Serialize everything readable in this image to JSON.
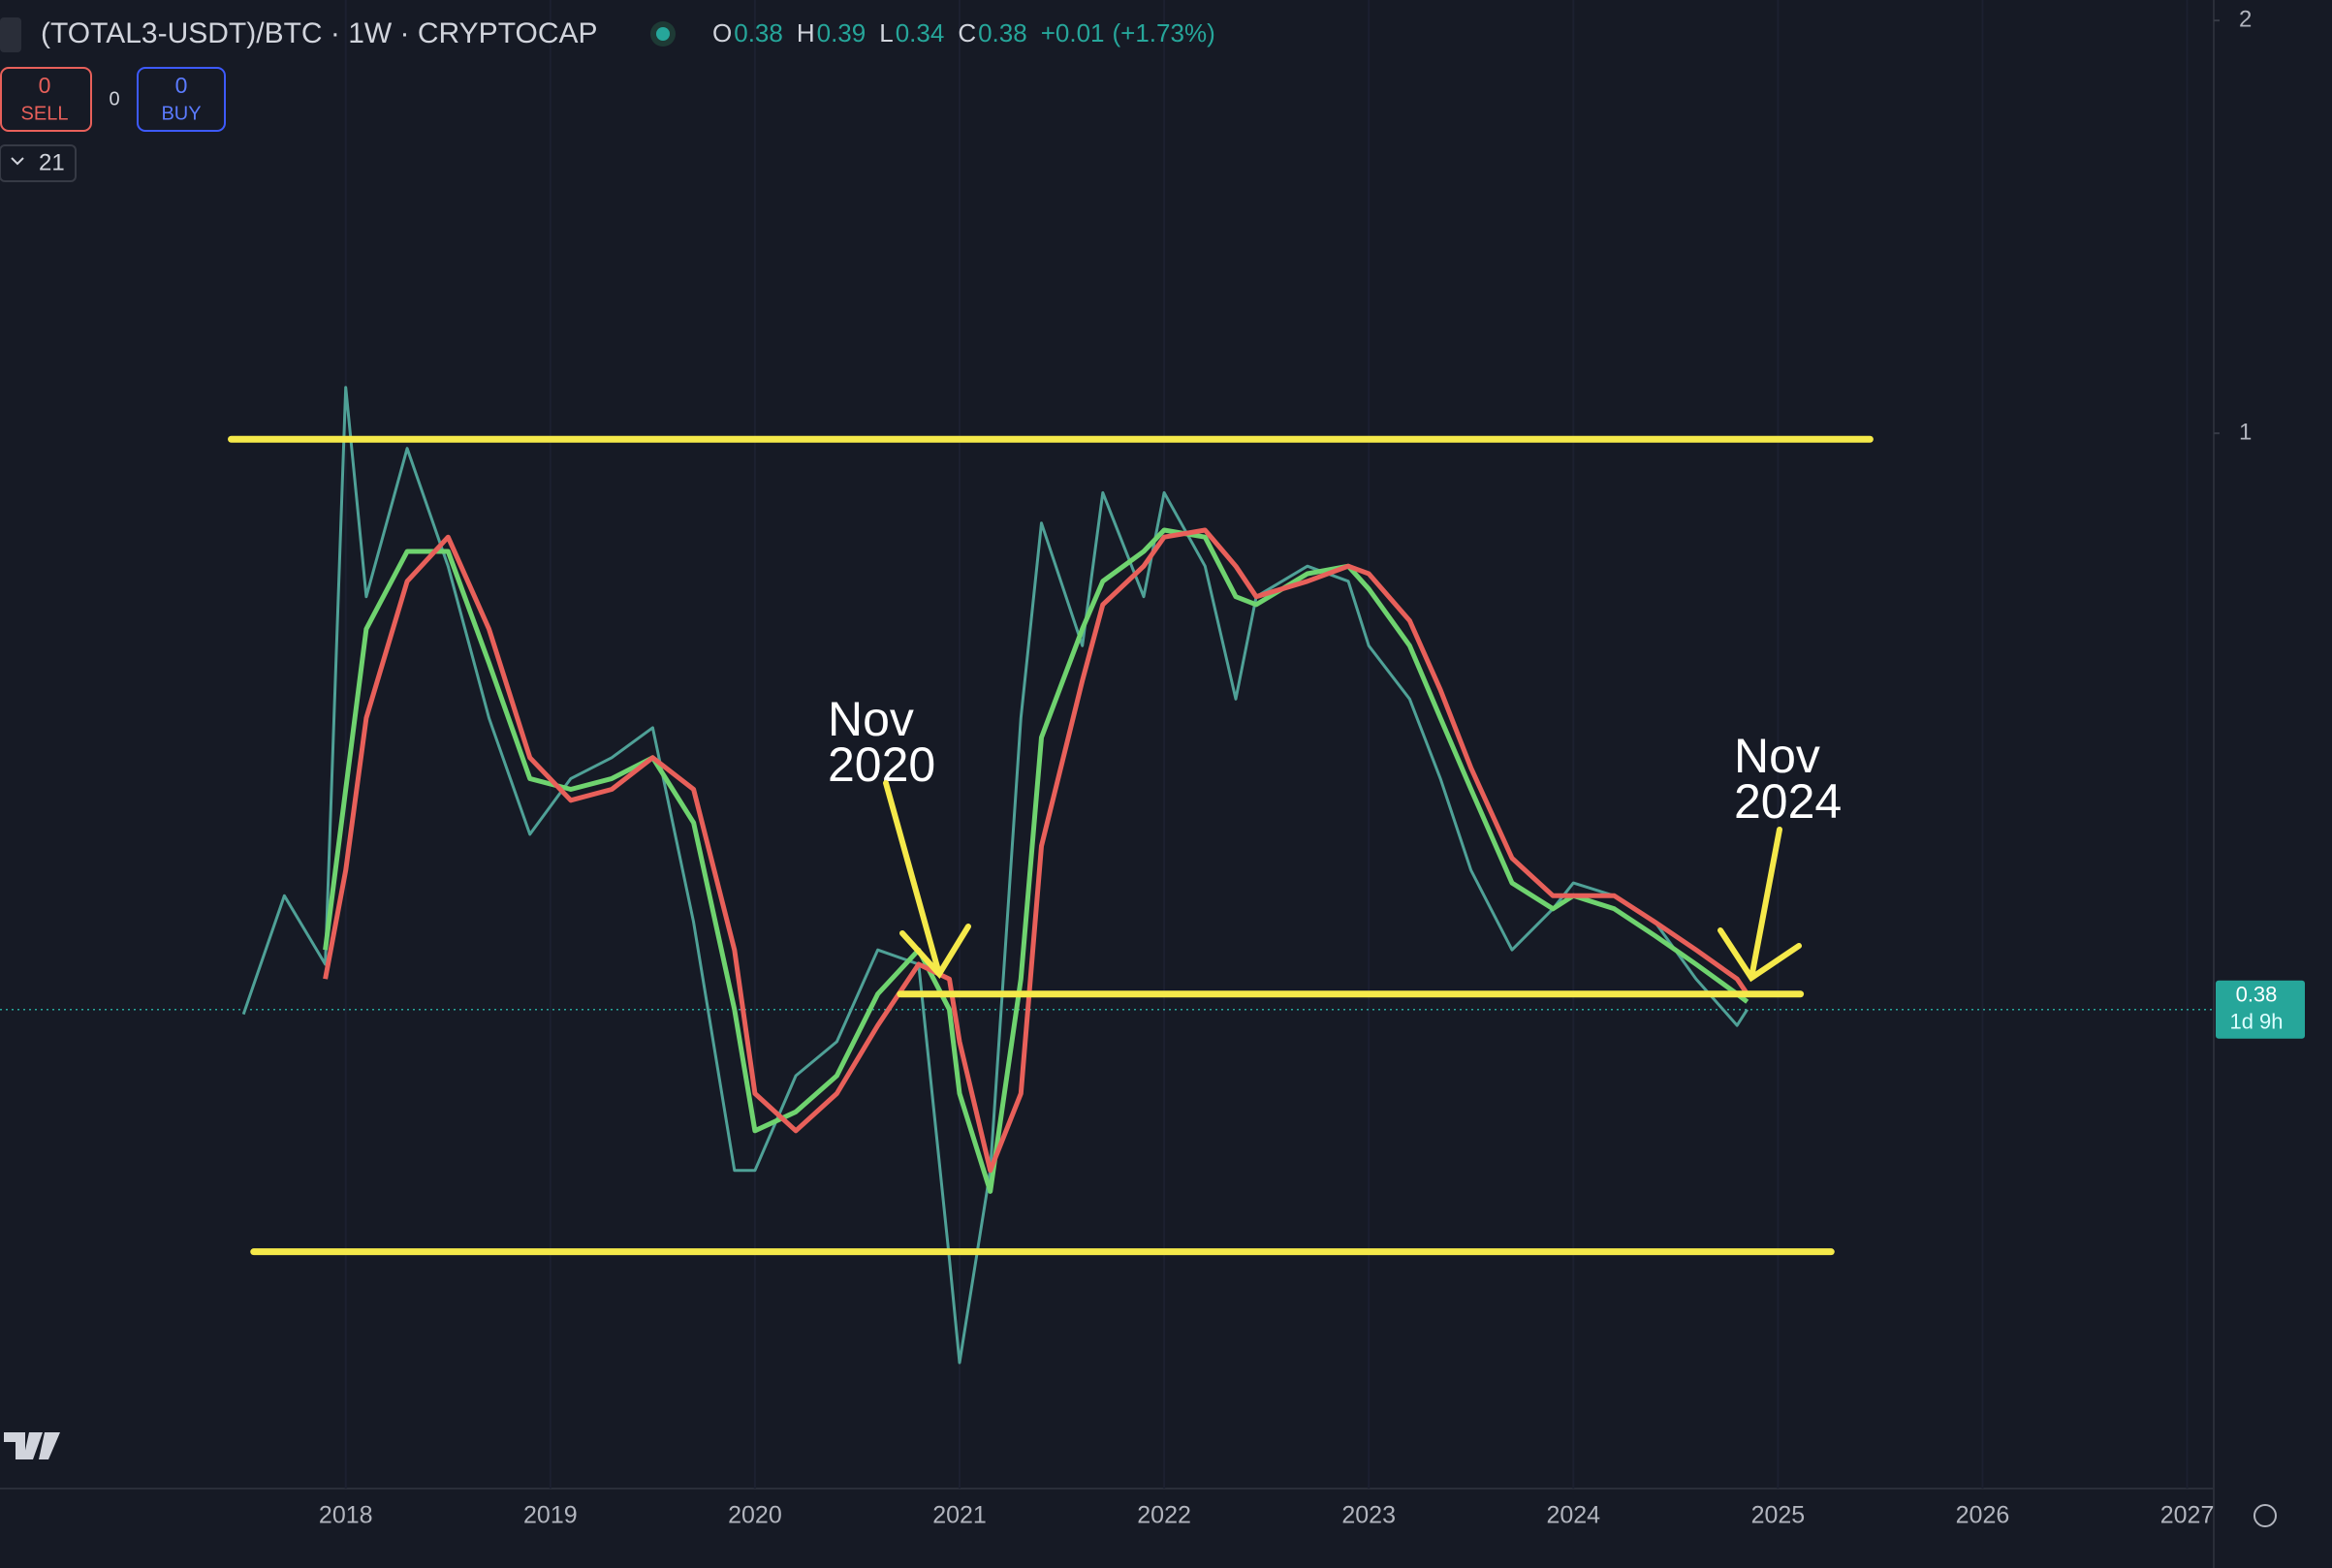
{
  "chart_data": {
    "type": "line",
    "title": "(TOTAL3-USDT)/BTC · 1W · CRYPTOCAP",
    "ohlc": [
      {
        "label": "O",
        "value": 0.38
      },
      {
        "label": "H",
        "value": 0.39
      },
      {
        "label": "L",
        "value": 0.34
      },
      {
        "label": "C",
        "value": 0.38
      }
    ],
    "change": "+0.01",
    "change_pct": "(+1.73%)",
    "trade": {
      "sell": 0,
      "sell_label": "SELL",
      "spread": 0,
      "buy": 0,
      "buy_label": "BUY"
    },
    "indicator_count": 21,
    "last_price": 0.38,
    "countdown": "1d 9h",
    "log_scale": true,
    "x": [
      2017.5,
      2017.7,
      2017.9,
      2018.0,
      2018.1,
      2018.3,
      2018.5,
      2018.7,
      2018.9,
      2019.1,
      2019.3,
      2019.5,
      2019.7,
      2019.9,
      2020.0,
      2020.2,
      2020.4,
      2020.6,
      2020.8,
      2020.95,
      2021.0,
      2021.15,
      2021.3,
      2021.4,
      2021.6,
      2021.7,
      2021.9,
      2022.0,
      2022.2,
      2022.35,
      2022.45,
      2022.7,
      2022.9,
      2023.0,
      2023.2,
      2023.35,
      2023.5,
      2023.7,
      2023.9,
      2024.0,
      2024.2,
      2024.4,
      2024.6,
      2024.8,
      2024.85
    ],
    "series": [
      {
        "color": "#4fa197",
        "values": [
          0.377,
          0.46,
          0.41,
          1.08,
          0.76,
          0.975,
          0.8,
          0.62,
          0.51,
          0.56,
          0.58,
          0.61,
          0.44,
          0.29,
          0.29,
          0.34,
          0.36,
          0.42,
          0.41,
          0.25,
          0.21,
          0.29,
          0.62,
          0.86,
          0.7,
          0.905,
          0.76,
          0.905,
          0.8,
          0.64,
          0.76,
          0.8,
          0.78,
          0.7,
          0.64,
          0.56,
          0.48,
          0.42,
          0.45,
          0.47,
          0.46,
          0.44,
          0.4,
          0.37,
          0.38
        ]
      },
      {
        "color": "#6fd36f",
        "values": [
          null,
          null,
          0.42,
          0.55,
          0.72,
          0.82,
          0.82,
          0.68,
          0.56,
          0.55,
          0.56,
          0.58,
          0.52,
          0.38,
          0.31,
          0.32,
          0.34,
          0.39,
          0.42,
          0.38,
          0.33,
          0.28,
          0.4,
          0.6,
          0.72,
          0.78,
          0.82,
          0.85,
          0.84,
          0.76,
          0.75,
          0.79,
          0.8,
          0.77,
          0.7,
          0.62,
          0.55,
          0.47,
          0.45,
          0.46,
          0.45,
          0.43,
          0.41,
          0.39,
          0.385
        ]
      },
      {
        "color": "#e8605a",
        "values": [
          null,
          null,
          0.4,
          0.48,
          0.62,
          0.78,
          0.84,
          0.72,
          0.58,
          0.54,
          0.55,
          0.58,
          0.55,
          0.42,
          0.33,
          0.31,
          0.33,
          0.37,
          0.41,
          0.4,
          0.36,
          0.29,
          0.33,
          0.5,
          0.66,
          0.75,
          0.8,
          0.84,
          0.85,
          0.8,
          0.76,
          0.78,
          0.8,
          0.79,
          0.73,
          0.65,
          0.57,
          0.49,
          0.46,
          0.46,
          0.46,
          0.44,
          0.42,
          0.4,
          0.39
        ]
      }
    ],
    "levels": [
      {
        "value": 0.99,
        "x": [
          2017.44,
          2025.45
        ],
        "color": "#f5e94a"
      },
      {
        "value": 0.39,
        "x": [
          2020.71,
          2025.11
        ],
        "color": "#f5e94a"
      },
      {
        "value": 0.253,
        "x": [
          2017.55,
          2025.26
        ],
        "color": "#f5e94a"
      }
    ],
    "annotations": [
      {
        "text": [
          "Nov",
          "2020"
        ]
      },
      {
        "text": [
          "Nov",
          "2024"
        ]
      }
    ],
    "xlim": [
      2016.31,
      2027.13
    ],
    "xticks": [
      2018,
      2019,
      2020,
      2021,
      2022,
      2023,
      2024,
      2025,
      2026,
      2027
    ],
    "ylim": [
      0.17,
      2.07
    ],
    "yticks": [
      1,
      2
    ]
  }
}
